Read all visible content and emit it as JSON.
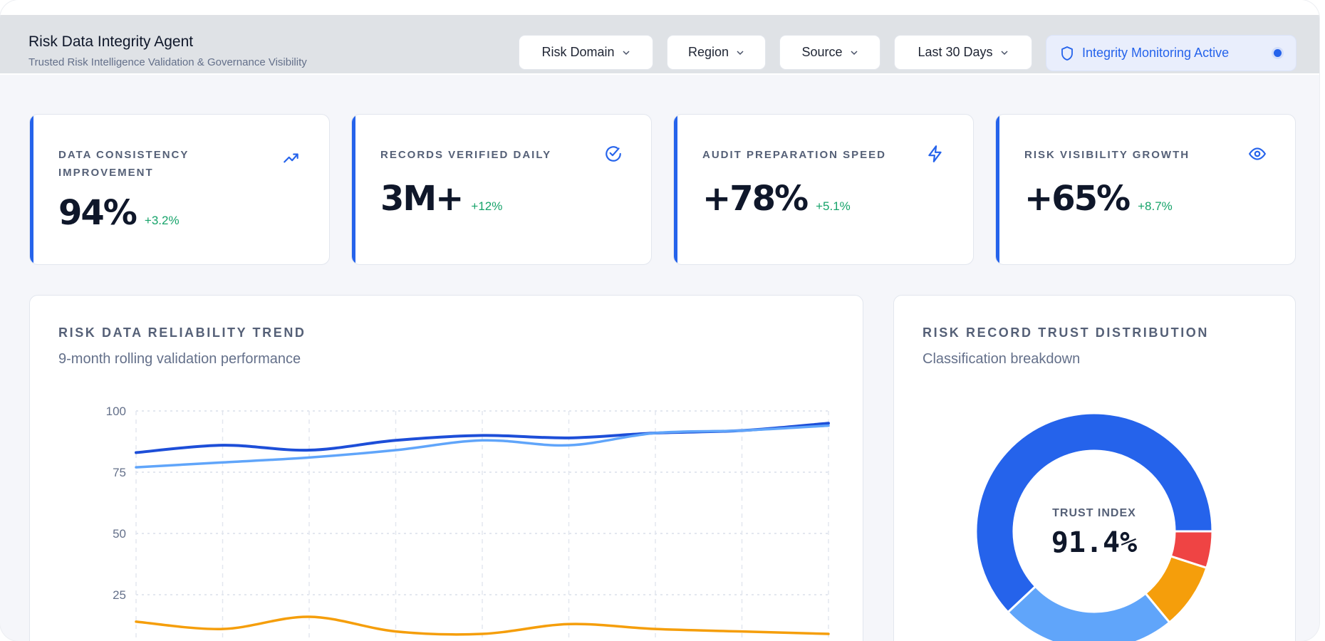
{
  "header": {
    "title": "Risk Data Integrity Agent",
    "subtitle": "Trusted Risk Intelligence Validation & Governance Visibility",
    "filters": [
      {
        "label": "Risk Domain",
        "icon": "chevron-down-icon"
      },
      {
        "label": "Region",
        "icon": "chevron-down-icon"
      },
      {
        "label": "Source",
        "icon": "chevron-down-icon"
      },
      {
        "label": "Last 30 Days",
        "icon": "chevron-down-icon"
      }
    ],
    "status_badge": {
      "label": "Integrity Monitoring Active",
      "icon": "shield-icon"
    }
  },
  "kpis": [
    {
      "label": "DATA CONSISTENCY IMPROVEMENT",
      "value": "94%",
      "delta": "+3.2%",
      "icon": "trending-up-icon"
    },
    {
      "label": "RECORDS VERIFIED DAILY",
      "value": "3M+",
      "delta": "+12%",
      "icon": "check-circle-icon"
    },
    {
      "label": "AUDIT PREPARATION SPEED",
      "value": "+78%",
      "delta": "+5.1%",
      "icon": "lightning-icon"
    },
    {
      "label": "RISK VISIBILITY GROWTH",
      "value": "+65%",
      "delta": "+8.7%",
      "icon": "eye-icon"
    }
  ],
  "trend_panel": {
    "title": "RISK DATA RELIABILITY TREND",
    "subtitle": "9-month rolling validation performance"
  },
  "distribution_panel": {
    "title": "RISK RECORD TRUST DISTRIBUTION",
    "subtitle": "Classification breakdown",
    "center_label": "TRUST INDEX",
    "center_value": "91.4%"
  },
  "colors": {
    "accent": "#2563eb",
    "light_blue": "#60a5fa",
    "orange": "#f59e0b",
    "red": "#ef4444",
    "positive": "#16a36a"
  },
  "chart_data": [
    {
      "type": "line",
      "x": [
        1,
        2,
        3,
        4,
        5,
        6,
        7,
        8,
        9
      ],
      "ylim": [
        0,
        100
      ],
      "yticks": [
        100,
        75,
        50,
        25
      ],
      "grid": true,
      "series": [
        {
          "color": "#1d4ed8",
          "values": [
            83,
            86,
            84,
            88,
            90,
            89,
            91,
            92,
            95
          ]
        },
        {
          "color": "#60a5fa",
          "values": [
            77,
            79,
            81,
            84,
            88,
            86,
            91,
            92,
            94
          ]
        },
        {
          "color": "#f59e0b",
          "values": [
            14,
            11,
            16,
            10,
            9,
            13,
            11,
            10,
            9
          ]
        }
      ]
    },
    {
      "type": "pie",
      "donut": true,
      "slices": [
        {
          "value": 62,
          "color": "#2563eb"
        },
        {
          "value": 24,
          "color": "#60a5fa"
        },
        {
          "value": 9,
          "color": "#f59e0b"
        },
        {
          "value": 5,
          "color": "#ef4444"
        }
      ]
    }
  ]
}
